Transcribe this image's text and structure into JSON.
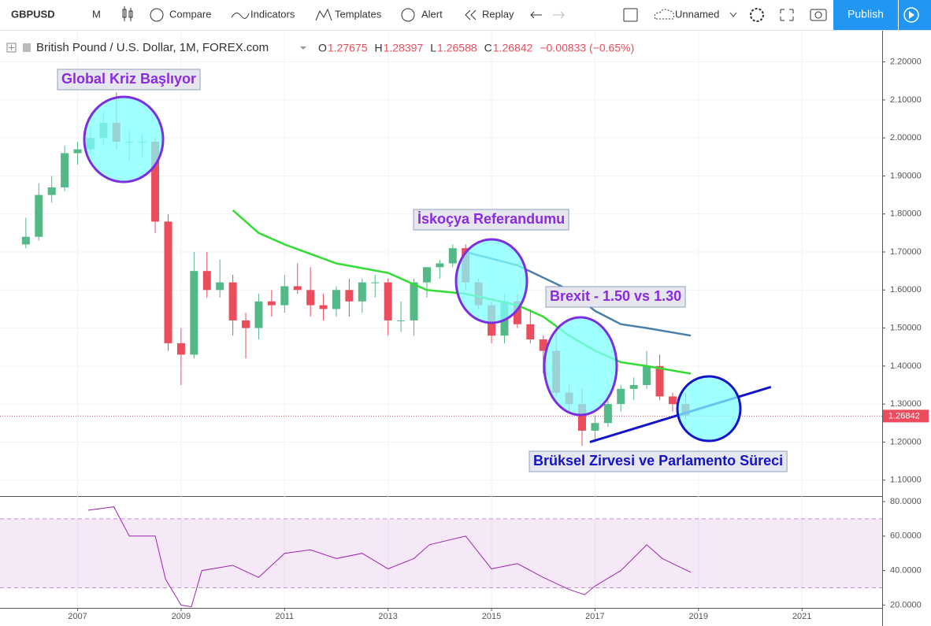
{
  "toolbar": {
    "symbol": "GBPUSD",
    "interval": "M",
    "compare": "Compare",
    "indicators": "Indicators",
    "templates": "Templates",
    "alert": "Alert",
    "replay": "Replay",
    "layout": "Unnamed",
    "publish": "Publish"
  },
  "chart_data": {
    "type": "candlestick",
    "title": "British Pound / U.S. Dollar, 1M, FOREX.com",
    "legend": [
      {
        "label": "O",
        "value": 1.27675
      },
      {
        "label": "H",
        "value": 1.28397
      },
      {
        "label": "L",
        "value": 1.26588
      },
      {
        "label": "C",
        "value": 1.26842
      }
    ],
    "change": "−0.00833 (−0.65%)",
    "last_price": 1.26842,
    "annotations": [
      "Global Kriz Başlıyor",
      "İskoçya Referandumu",
      "Brexit - 1.50 vs 1.30",
      "Brüksel Zirvesi ve Parlamento Süreci"
    ],
    "xlim": [
      2005.5,
      2022.55
    ],
    "xticks": [
      2007,
      2009,
      2011,
      2013,
      2015,
      2017,
      2019,
      2021
    ],
    "ylim": [
      1.06,
      2.28
    ],
    "yticks": [
      {
        "value": 2.2,
        "label": "2.20000"
      },
      {
        "value": 2.1,
        "label": "2.10000"
      },
      {
        "value": 2.0,
        "label": "2.00000"
      },
      {
        "value": 1.9,
        "label": "1.90000"
      },
      {
        "value": 1.8,
        "label": "1.80000"
      },
      {
        "value": 1.7,
        "label": "1.70000"
      },
      {
        "value": 1.6,
        "label": "1.60000"
      },
      {
        "value": 1.5,
        "label": "1.50000"
      },
      {
        "value": 1.4,
        "label": "1.40000"
      },
      {
        "value": 1.3,
        "label": "1.30000"
      },
      {
        "value": 1.2,
        "label": "1.20000"
      },
      {
        "value": 1.1,
        "label": "1.10000"
      }
    ],
    "up_color": "#53b987",
    "down_color": "#eb4d5c",
    "x": [
      2006.0,
      2006.25,
      2006.5,
      2006.75,
      2007.0,
      2007.25,
      2007.5,
      2007.75,
      2008.0,
      2008.25,
      2008.5,
      2008.75,
      2009.0,
      2009.25,
      2009.5,
      2009.75,
      2010.0,
      2010.25,
      2010.5,
      2010.75,
      2011.0,
      2011.25,
      2011.5,
      2011.75,
      2012.0,
      2012.25,
      2012.5,
      2012.75,
      2013.0,
      2013.25,
      2013.5,
      2013.75,
      2014.0,
      2014.25,
      2014.5,
      2014.75,
      2015.0,
      2015.25,
      2015.5,
      2015.75,
      2016.0,
      2016.25,
      2016.5,
      2016.75,
      2017.0,
      2017.25,
      2017.5,
      2017.75,
      2018.0,
      2018.25,
      2018.5,
      2018.75
    ],
    "candles": [
      [
        1.72,
        1.79,
        1.71,
        1.74
      ],
      [
        1.74,
        1.88,
        1.73,
        1.85
      ],
      [
        1.85,
        1.9,
        1.83,
        1.87
      ],
      [
        1.87,
        1.98,
        1.86,
        1.96
      ],
      [
        1.96,
        1.99,
        1.93,
        1.97
      ],
      [
        1.97,
        2.03,
        1.96,
        2.0
      ],
      [
        2.0,
        2.07,
        1.98,
        2.04
      ],
      [
        2.04,
        2.12,
        1.97,
        1.99
      ],
      [
        1.99,
        2.02,
        1.94,
        1.99
      ],
      [
        1.99,
        2.01,
        1.95,
        1.99
      ],
      [
        1.99,
        2.0,
        1.75,
        1.78
      ],
      [
        1.78,
        1.8,
        1.44,
        1.46
      ],
      [
        1.46,
        1.5,
        1.35,
        1.43
      ],
      [
        1.43,
        1.7,
        1.42,
        1.65
      ],
      [
        1.65,
        1.7,
        1.58,
        1.6
      ],
      [
        1.6,
        1.68,
        1.58,
        1.62
      ],
      [
        1.62,
        1.64,
        1.48,
        1.52
      ],
      [
        1.52,
        1.54,
        1.42,
        1.5
      ],
      [
        1.5,
        1.59,
        1.47,
        1.57
      ],
      [
        1.57,
        1.6,
        1.53,
        1.56
      ],
      [
        1.56,
        1.64,
        1.54,
        1.61
      ],
      [
        1.61,
        1.67,
        1.59,
        1.6
      ],
      [
        1.6,
        1.66,
        1.53,
        1.56
      ],
      [
        1.56,
        1.59,
        1.52,
        1.55
      ],
      [
        1.55,
        1.61,
        1.53,
        1.6
      ],
      [
        1.6,
        1.63,
        1.53,
        1.57
      ],
      [
        1.57,
        1.63,
        1.54,
        1.62
      ],
      [
        1.62,
        1.64,
        1.58,
        1.62
      ],
      [
        1.62,
        1.63,
        1.48,
        1.52
      ],
      [
        1.52,
        1.57,
        1.49,
        1.52
      ],
      [
        1.52,
        1.63,
        1.48,
        1.62
      ],
      [
        1.62,
        1.66,
        1.58,
        1.66
      ],
      [
        1.66,
        1.68,
        1.63,
        1.67
      ],
      [
        1.67,
        1.72,
        1.66,
        1.71
      ],
      [
        1.71,
        1.72,
        1.6,
        1.62
      ],
      [
        1.62,
        1.63,
        1.55,
        1.56
      ],
      [
        1.56,
        1.57,
        1.46,
        1.48
      ],
      [
        1.48,
        1.59,
        1.46,
        1.57
      ],
      [
        1.57,
        1.59,
        1.5,
        1.51
      ],
      [
        1.51,
        1.55,
        1.46,
        1.47
      ],
      [
        1.47,
        1.48,
        1.38,
        1.44
      ],
      [
        1.44,
        1.5,
        1.32,
        1.33
      ],
      [
        1.33,
        1.35,
        1.28,
        1.3
      ],
      [
        1.3,
        1.34,
        1.19,
        1.23
      ],
      [
        1.23,
        1.27,
        1.2,
        1.25
      ],
      [
        1.25,
        1.31,
        1.24,
        1.3
      ],
      [
        1.3,
        1.35,
        1.28,
        1.34
      ],
      [
        1.34,
        1.37,
        1.31,
        1.35
      ],
      [
        1.35,
        1.44,
        1.34,
        1.4
      ],
      [
        1.4,
        1.43,
        1.31,
        1.32
      ],
      [
        1.32,
        1.33,
        1.28,
        1.3
      ],
      [
        1.3,
        1.33,
        1.26,
        1.27
      ]
    ],
    "ma_x": [
      2010.0,
      2010.5,
      2011.0,
      2012.0,
      2013.0,
      2013.75,
      2014.5,
      2015.5,
      2016.0,
      2016.5,
      2017.0,
      2017.5,
      2018.0,
      2018.85
    ],
    "ma_values": [
      1.81,
      1.75,
      1.72,
      1.67,
      1.645,
      1.6,
      1.59,
      1.56,
      1.53,
      1.48,
      1.44,
      1.41,
      1.4,
      1.38
    ],
    "ma_color": "#33dd33",
    "ma2_x": [
      2014.5,
      2015.5,
      2016.5,
      2017.0,
      2017.5,
      2018.0,
      2018.85
    ],
    "ma2_values": [
      1.7,
      1.665,
      1.6,
      1.545,
      1.51,
      1.5,
      1.48
    ],
    "ma2_color": "#4a7fa7",
    "trend_x": [
      2016.9,
      2020.4
    ],
    "trend_values": [
      1.2,
      1.345
    ],
    "trend_color": "#1414c8",
    "rsi": {
      "ylim": [
        18.8,
        82.3
      ],
      "band": [
        30,
        70
      ],
      "yticks": [
        {
          "value": 80,
          "label": "80.0000"
        },
        {
          "value": 60,
          "label": "60.0000"
        },
        {
          "value": 40,
          "label": "40.0000"
        },
        {
          "value": 20,
          "label": "20.0000"
        }
      ],
      "x": [
        2007.2,
        2007.7,
        2008.0,
        2008.5,
        2008.7,
        2009.0,
        2009.2,
        2009.4,
        2010.0,
        2010.5,
        2011.0,
        2011.5,
        2012.0,
        2012.5,
        2013.0,
        2013.5,
        2013.8,
        2014.5,
        2015.0,
        2015.5,
        2016.0,
        2016.5,
        2016.8,
        2017.0,
        2017.5,
        2018.0,
        2018.3,
        2018.85
      ],
      "values": [
        75,
        77,
        60,
        60,
        35,
        20,
        19,
        40,
        43,
        36,
        50,
        52,
        47,
        50,
        41,
        47,
        55,
        60,
        41,
        44,
        36,
        29,
        26,
        31,
        40,
        55,
        47,
        39
      ],
      "color": "#9c27b0"
    }
  }
}
